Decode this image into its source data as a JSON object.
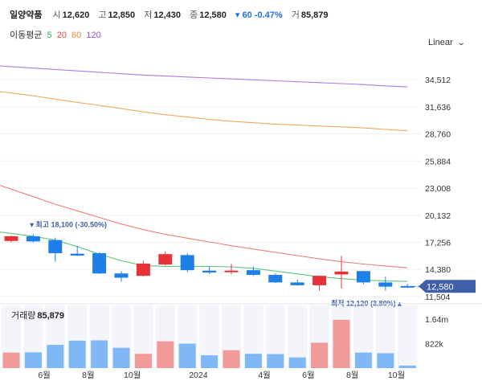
{
  "header": {
    "name": "일양약품",
    "open_label": "시",
    "open": "12,620",
    "high_label": "고",
    "high": "12,850",
    "low_label": "저",
    "low": "12,430",
    "close_label": "종",
    "close": "12,580",
    "change": "▾ 60 -0.47%",
    "volume_label": "거",
    "volume": "85,879"
  },
  "ma_legend": {
    "label": "이동평균",
    "items": [
      {
        "text": "5",
        "color": "#2bb34b"
      },
      {
        "text": "20",
        "color": "#e8473f"
      },
      {
        "text": "60",
        "color": "#f08a2c"
      },
      {
        "text": "120",
        "color": "#9a4fd6"
      }
    ]
  },
  "scale_mode": "Linear",
  "colors": {
    "up": "#e8323a",
    "down": "#1f7fe8",
    "volume_up": "#f09a9a",
    "volume_down": "#7fb8f5",
    "last_price_bg": "#3f5fa8"
  },
  "chart_data": {
    "type": "candlestick",
    "y_ticks": [
      "34,512",
      "31,636",
      "28,760",
      "25,884",
      "23,008",
      "20,132",
      "17,256",
      "14,380",
      "11,504"
    ],
    "y_tick_values": [
      34512,
      31636,
      28760,
      25884,
      23008,
      20132,
      17256,
      14380,
      11504
    ],
    "ylim": [
      10900,
      37000
    ],
    "x_ticks": [
      "6월",
      "8월",
      "10월",
      "2024",
      "4월",
      "6월",
      "8월",
      "10월"
    ],
    "x_tick_index": [
      1.5,
      3.5,
      5.5,
      8.5,
      11.5,
      13.5,
      15.5,
      17.5
    ],
    "candles": [
      {
        "o": 17400,
        "h": 18000,
        "l": 17250,
        "c": 17900
      },
      {
        "o": 17900,
        "h": 18100,
        "l": 17250,
        "c": 17350
      },
      {
        "o": 17500,
        "h": 17750,
        "l": 15200,
        "c": 16100
      },
      {
        "o": 16050,
        "h": 16900,
        "l": 15800,
        "c": 15850
      },
      {
        "o": 16100,
        "h": 16200,
        "l": 13900,
        "c": 13950
      },
      {
        "o": 13950,
        "h": 14200,
        "l": 13100,
        "c": 13500
      },
      {
        "o": 13700,
        "h": 15300,
        "l": 13650,
        "c": 15000
      },
      {
        "o": 14900,
        "h": 16300,
        "l": 14800,
        "c": 16000
      },
      {
        "o": 15900,
        "h": 16100,
        "l": 14100,
        "c": 14300
      },
      {
        "o": 14250,
        "h": 14700,
        "l": 13900,
        "c": 14050
      },
      {
        "o": 14100,
        "h": 14950,
        "l": 13850,
        "c": 14250
      },
      {
        "o": 14300,
        "h": 14700,
        "l": 13700,
        "c": 13800
      },
      {
        "o": 13800,
        "h": 13950,
        "l": 12950,
        "c": 13000
      },
      {
        "o": 13000,
        "h": 13300,
        "l": 12650,
        "c": 12700
      },
      {
        "o": 12700,
        "h": 13700,
        "l": 12120,
        "c": 13700
      },
      {
        "o": 13850,
        "h": 15800,
        "l": 12350,
        "c": 14150
      },
      {
        "o": 14200,
        "h": 14250,
        "l": 12800,
        "c": 13000
      },
      {
        "o": 13000,
        "h": 13600,
        "l": 12150,
        "c": 12550
      },
      {
        "o": 12620,
        "h": 12850,
        "l": 12430,
        "c": 12580
      }
    ],
    "volume_axis": {
      "ticks": [
        "1.64m",
        "822k"
      ],
      "tick_values": [
        1640000,
        822000
      ],
      "max": 2100000
    },
    "volume": [
      520000,
      530000,
      780000,
      920000,
      930000,
      680000,
      480000,
      900000,
      820000,
      430000,
      600000,
      480000,
      470000,
      360000,
      850000,
      1620000,
      520000,
      500000,
      85879
    ],
    "ma": {
      "ma5": [
        18200,
        17900,
        17500,
        16800,
        16000,
        15300,
        14800,
        14700,
        14700,
        14700,
        14650,
        14500,
        14200,
        13900,
        13600,
        13400,
        13250,
        13150,
        13100
      ],
      "ma20": [
        22900,
        22100,
        21300,
        20600,
        19900,
        19200,
        18600,
        18100,
        17700,
        17300,
        16900,
        16550,
        16200,
        15850,
        15500,
        15200,
        14950,
        14750,
        14550
      ],
      "ma60": [
        33100,
        32800,
        32450,
        32100,
        31800,
        31450,
        31100,
        30800,
        30550,
        30300,
        30100,
        29950,
        29800,
        29700,
        29600,
        29500,
        29400,
        29250,
        29100
      ],
      "ma120": [
        35900,
        35750,
        35600,
        35450,
        35300,
        35150,
        35000,
        34900,
        34800,
        34700,
        34600,
        34500,
        34400,
        34300,
        34200,
        34100,
        34000,
        33850,
        33750
      ]
    },
    "annotations": {
      "high": {
        "text": "▾ 최고 18,100 (-30.50%)",
        "index": 1,
        "value": 18100
      },
      "low": {
        "text": "최저 12,120 (3.80%) ▴",
        "index": 14,
        "value": 12120
      }
    },
    "last_price": "12,580",
    "volume_label": "거래량",
    "volume_value": "85,879"
  }
}
